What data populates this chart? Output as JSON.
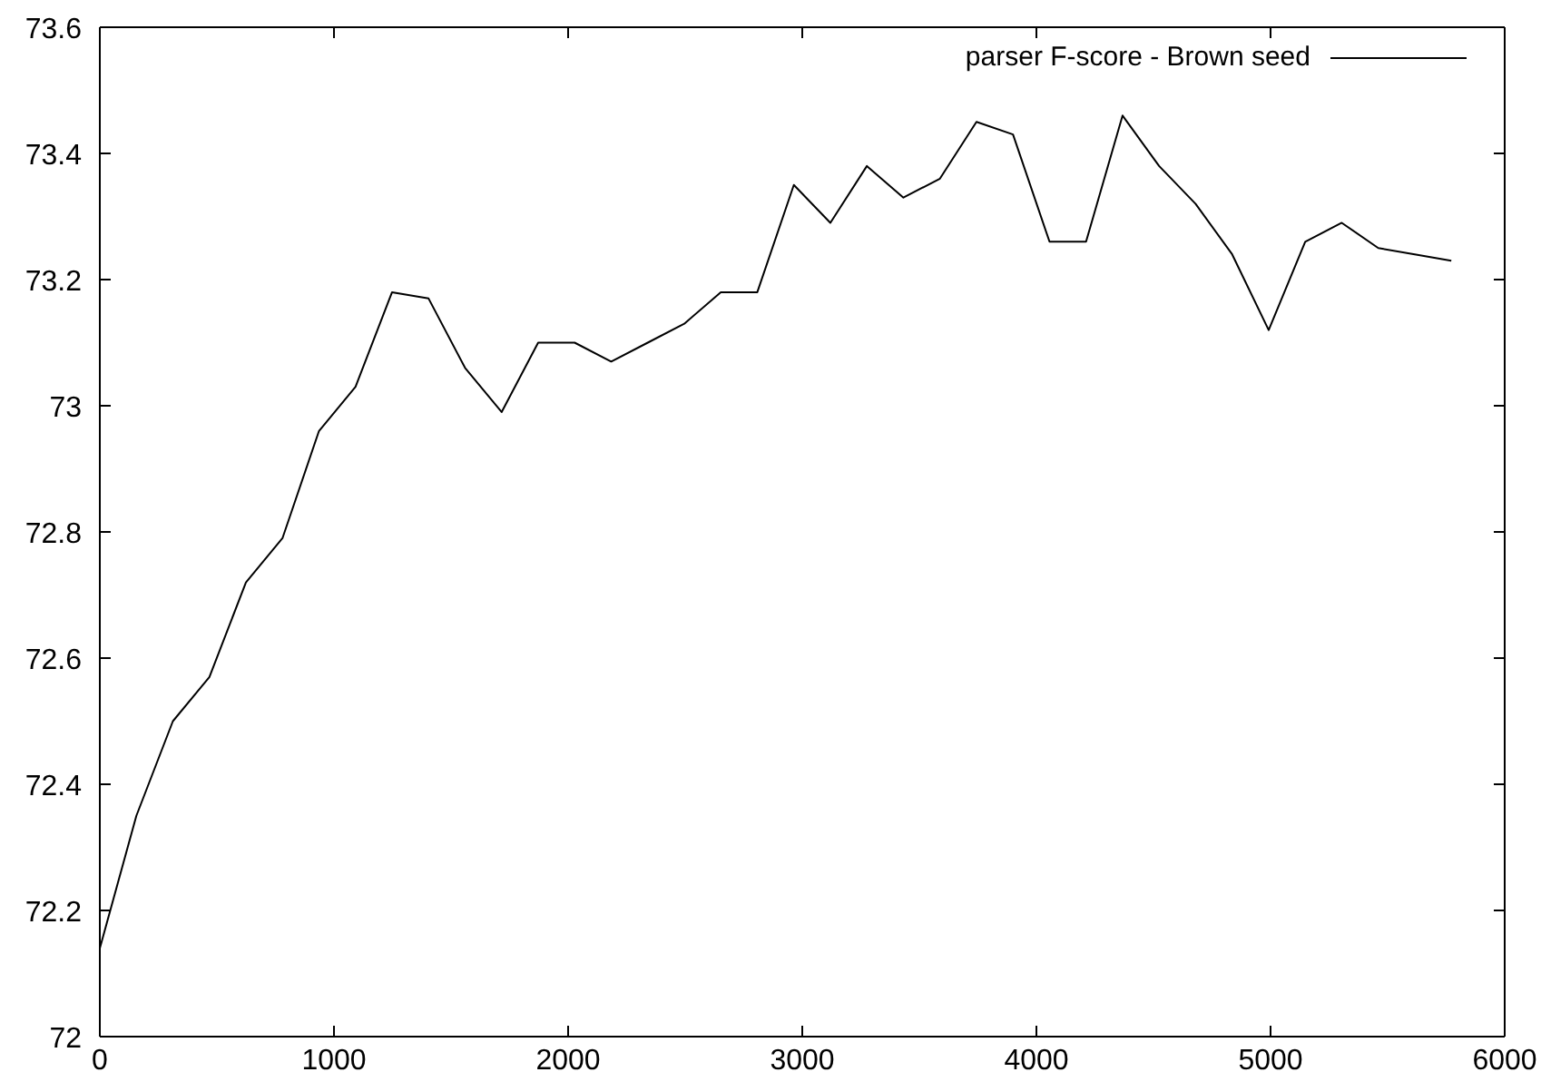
{
  "chart_data": {
    "type": "line",
    "x": [
      0,
      156,
      312,
      468,
      624,
      780,
      936,
      1092,
      1248,
      1404,
      1560,
      1716,
      1872,
      2028,
      2184,
      2340,
      2496,
      2652,
      2808,
      2964,
      3120,
      3276,
      3432,
      3588,
      3744,
      3900,
      4056,
      4212,
      4368,
      4524,
      4680,
      4836,
      4992,
      5148,
      5304,
      5460,
      5616,
      5772
    ],
    "series": [
      {
        "name": "parser F-score - Brown seed",
        "color": "#000000",
        "values": [
          72.14,
          72.35,
          72.5,
          72.57,
          72.72,
          72.79,
          72.96,
          73.03,
          73.18,
          73.17,
          73.06,
          72.99,
          73.1,
          73.1,
          73.07,
          73.1,
          73.13,
          73.18,
          73.18,
          73.35,
          73.29,
          73.38,
          73.33,
          73.36,
          73.45,
          73.43,
          73.26,
          73.26,
          73.46,
          73.38,
          73.32,
          73.24,
          73.12,
          73.26,
          73.29,
          73.25,
          73.24,
          73.23
        ]
      }
    ],
    "xlim": [
      0,
      6000
    ],
    "xticks": [
      0,
      1000,
      2000,
      3000,
      4000,
      5000,
      6000
    ],
    "ylim": [
      72,
      73.6
    ],
    "yticks": [
      72,
      72.2,
      72.4,
      72.6,
      72.8,
      73,
      73.2,
      73.4,
      73.6
    ],
    "legend": "top right",
    "marker": "none",
    "line_style": "solid"
  }
}
